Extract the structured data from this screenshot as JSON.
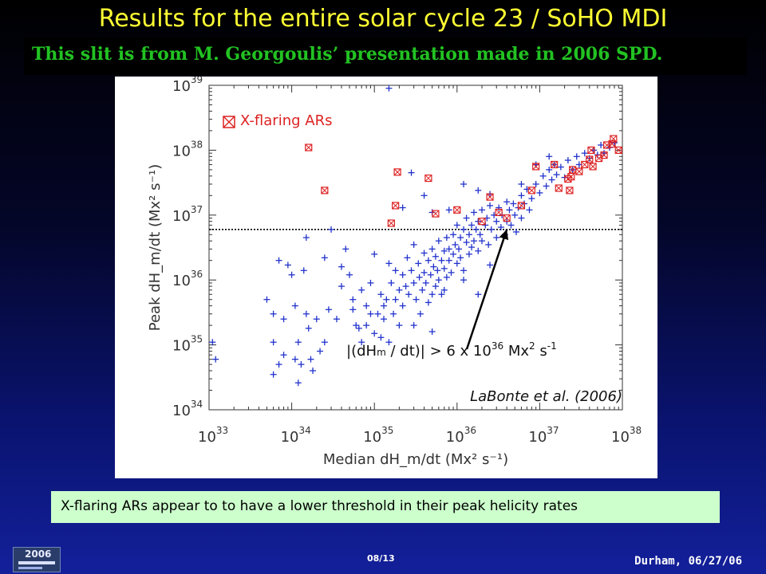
{
  "slide": {
    "title": "Results for the entire solar cycle 23 / SoHO MDI",
    "credit": "This slit is from M. Georgoulis’ presentation made in 2006 SPD.",
    "summary": "X-flaring ARs appear to to have a lower threshold in their peak helicity rates",
    "slide_number": "08/13",
    "location_date": "Durham, 06/27/06",
    "logo_year": "2006"
  },
  "colors": {
    "title": "#ffff33",
    "credit_text": "#22c222",
    "summary_bg": "#ccffcc",
    "cross_series": "#2233cc",
    "xflare_series": "#dd2222",
    "axes": "#333333"
  },
  "chart_data": {
    "type": "scatter",
    "xlabel": "Median dH_m/dt (Mx² s⁻¹)",
    "ylabel": "Peak dH_m/dt (Mx² s⁻¹)",
    "xscale": "log",
    "yscale": "log",
    "xlim": [
      1e+33,
      1e+38
    ],
    "ylim": [
      1e+34,
      1e+39
    ],
    "x_tick_labels": [
      {
        "base": "10",
        "exp": "33",
        "value": 1e+33
      },
      {
        "base": "10",
        "exp": "34",
        "value": 1e+34
      },
      {
        "base": "10",
        "exp": "35",
        "value": 1e+35
      },
      {
        "base": "10",
        "exp": "36",
        "value": 1e+36
      },
      {
        "base": "10",
        "exp": "37",
        "value": 1e+37
      },
      {
        "base": "10",
        "exp": "38",
        "value": 1e+38
      }
    ],
    "y_tick_labels": [
      {
        "base": "10",
        "exp": "34",
        "value": 1e+34
      },
      {
        "base": "10",
        "exp": "35",
        "value": 1e+35
      },
      {
        "base": "10",
        "exp": "36",
        "value": 1e+36
      },
      {
        "base": "10",
        "exp": "37",
        "value": 1e+37
      },
      {
        "base": "10",
        "exp": "38",
        "value": 1e+38
      },
      {
        "base": "10",
        "exp": "39",
        "value": 1e+39
      }
    ],
    "threshold": {
      "value": 6e+36,
      "style": "dotted",
      "label": {
        "lhs": "|(dH",
        "sub": "m",
        "mid": " / dt)| > 6 x 10",
        "exp1": "36",
        "unit": " Mx",
        "exp2": "2",
        "tail": " s",
        "exp3": "-1"
      }
    },
    "annotation_arrow": {
      "from": [
        6e+35,
        5e+35
      ],
      "to": [
        4e+36,
        6e+36
      ]
    },
    "citation": "LaBonte et al. (2006)",
    "legend": {
      "position": "top-left"
    },
    "series": [
      {
        "name": "",
        "marker": "plus",
        "points": [
          [
            1.1e+33,
            1.1e+35
          ],
          [
            1.2e+33,
            6e+34
          ],
          [
            5e+33,
            5e+35
          ],
          [
            6e+33,
            3e+35
          ],
          [
            6e+33,
            1.1e+35
          ],
          [
            6e+33,
            3.5e+34
          ],
          [
            7e+33,
            2e+36
          ],
          [
            7e+33,
            5e+34
          ],
          [
            8e+33,
            7e+34
          ],
          [
            8e+33,
            2.5e+35
          ],
          [
            9e+33,
            1.7e+36
          ],
          [
            1e+34,
            1.2e+36
          ],
          [
            1.1e+34,
            4e+35
          ],
          [
            1.1e+34,
            6e+34
          ],
          [
            1.2e+34,
            1.1e+35
          ],
          [
            1.2e+34,
            2.6e+34
          ],
          [
            1.3e+34,
            5e+34
          ],
          [
            1.4e+34,
            1.4e+36
          ],
          [
            1.5e+34,
            4.5e+36
          ],
          [
            1.5e+34,
            3e+35
          ],
          [
            1.6e+34,
            1.8e+35
          ],
          [
            1.7e+34,
            6e+34
          ],
          [
            1.8e+34,
            4e+34
          ],
          [
            2e+34,
            2.5e+35
          ],
          [
            2.2e+34,
            8e+34
          ],
          [
            2.5e+34,
            1.1e+35
          ],
          [
            2.5e+34,
            2.2e+36
          ],
          [
            2.8e+34,
            3.5e+35
          ],
          [
            3e+34,
            6e+36
          ],
          [
            3.5e+34,
            2.5e+35
          ],
          [
            4e+34,
            1.6e+36
          ],
          [
            4e+34,
            8e+35
          ],
          [
            4.5e+34,
            3e+36
          ],
          [
            5e+34,
            1.2e+36
          ],
          [
            5.5e+34,
            3.5e+35
          ],
          [
            5.5e+34,
            5e+35
          ],
          [
            6e+34,
            2e+35
          ],
          [
            6.5e+34,
            1.8e+35
          ],
          [
            7e+34,
            7e+35
          ],
          [
            7e+34,
            1.1e+35
          ],
          [
            8e+34,
            4e+35
          ],
          [
            8e+34,
            2e+35
          ],
          [
            9e+34,
            9e+35
          ],
          [
            9e+34,
            3e+35
          ],
          [
            1e+35,
            2.5e+36
          ],
          [
            1e+35,
            1.5e+35
          ],
          [
            1.1e+35,
            3e+35
          ],
          [
            1.2e+35,
            6e+35
          ],
          [
            1.2e+35,
            1.3e+35
          ],
          [
            1.3e+35,
            4e+35
          ],
          [
            1.3e+35,
            2.5e+35
          ],
          [
            1.4e+35,
            5e+35
          ],
          [
            1.5e+35,
            1.8e+36
          ],
          [
            1.5e+35,
            1.1e+35
          ],
          [
            1.6e+35,
            9e+35
          ],
          [
            1.7e+35,
            3e+35
          ],
          [
            1.8e+35,
            1.4e+36
          ],
          [
            1.8e+35,
            5e+35
          ],
          [
            2e+35,
            7e+35
          ],
          [
            2e+35,
            2e+35
          ],
          [
            2.2e+35,
            1.2e+36
          ],
          [
            2.2e+35,
            4e+35
          ],
          [
            2.4e+35,
            8e+35
          ],
          [
            2.5e+35,
            2.2e+36
          ],
          [
            2.6e+35,
            6e+35
          ],
          [
            2.8e+35,
            1.4e+36
          ],
          [
            3e+35,
            3.5e+36
          ],
          [
            3e+35,
            9e+35
          ],
          [
            3.2e+35,
            5e+35
          ],
          [
            3.4e+35,
            1.8e+36
          ],
          [
            3.5e+35,
            1.1e+36
          ],
          [
            3.6e+35,
            3e+35
          ],
          [
            3.8e+35,
            7e+35
          ],
          [
            4e+35,
            2.6e+36
          ],
          [
            4e+35,
            1.3e+36
          ],
          [
            4.2e+35,
            9e+35
          ],
          [
            4.5e+35,
            2e+36
          ],
          [
            4.5e+35,
            4.5e+35
          ],
          [
            4.8e+35,
            1.2e+36
          ],
          [
            5e+35,
            3e+36
          ],
          [
            5e+35,
            6e+35
          ],
          [
            5.2e+35,
            1.6e+36
          ],
          [
            5.5e+35,
            8e+35
          ],
          [
            5.5e+35,
            2.3e+36
          ],
          [
            5.8e+35,
            1.4e+36
          ],
          [
            6e+35,
            4e+36
          ],
          [
            6e+35,
            1e+36
          ],
          [
            6.5e+35,
            2e+36
          ],
          [
            6.5e+35,
            6e+35
          ],
          [
            7e+35,
            2.8e+36
          ],
          [
            7e+35,
            1.5e+36
          ],
          [
            7.5e+35,
            4.5e+36
          ],
          [
            7.5e+35,
            1.1e+36
          ],
          [
            8e+35,
            3e+36
          ],
          [
            8e+35,
            2e+36
          ],
          [
            8.5e+35,
            1.3e+36
          ],
          [
            9e+35,
            5e+36
          ],
          [
            9e+35,
            2.5e+36
          ],
          [
            9.5e+35,
            3.5e+36
          ],
          [
            1e+36,
            1.8e+36
          ],
          [
            1e+36,
            7e+36
          ],
          [
            1.05e+36,
            3e+36
          ],
          [
            1.1e+36,
            4.5e+36
          ],
          [
            1.1e+36,
            2.2e+36
          ],
          [
            1.2e+36,
            6e+36
          ],
          [
            1.2e+36,
            1.4e+36
          ],
          [
            1.3e+36,
            3.8e+36
          ],
          [
            1.3e+36,
            9e+36
          ],
          [
            1.4e+36,
            5e+36
          ],
          [
            1.4e+36,
            2.5e+36
          ],
          [
            1.5e+36,
            7e+36
          ],
          [
            1.5e+36,
            3.2e+36
          ],
          [
            1.6e+36,
            1.1e+37
          ],
          [
            1.6e+36,
            4e+36
          ],
          [
            1.7e+36,
            6e+36
          ],
          [
            1.8e+36,
            8e+36
          ],
          [
            1.8e+36,
            2.8e+36
          ],
          [
            1.9e+36,
            5e+36
          ],
          [
            2e+36,
            1.2e+37
          ],
          [
            2e+36,
            4e+36
          ],
          [
            2.2e+36,
            7e+36
          ],
          [
            2.3e+36,
            9e+36
          ],
          [
            2.4e+36,
            3.5e+36
          ],
          [
            2.5e+36,
            1.4e+37
          ],
          [
            2.6e+36,
            6e+36
          ],
          [
            2.8e+36,
            1e+37
          ],
          [
            3e+36,
            8e+36
          ],
          [
            3e+36,
            4.5e+36
          ],
          [
            3.2e+36,
            1.3e+37
          ],
          [
            3.4e+36,
            6.5e+36
          ],
          [
            3.5e+36,
            1e+37
          ],
          [
            3.8e+36,
            5e+36
          ],
          [
            4e+36,
            1.6e+37
          ],
          [
            4e+36,
            8e+36
          ],
          [
            4.3e+36,
            1.2e+37
          ],
          [
            4.5e+36,
            7e+36
          ],
          [
            4.8e+36,
            1.5e+37
          ],
          [
            5e+36,
            1e+37
          ],
          [
            5.2e+36,
            5.5e+36
          ],
          [
            5.5e+36,
            1.3e+37
          ],
          [
            6e+36,
            2e+37
          ],
          [
            6e+36,
            9e+36
          ],
          [
            6.5e+36,
            1.5e+37
          ],
          [
            7e+36,
            2.5e+37
          ],
          [
            7.5e+36,
            1.2e+37
          ],
          [
            8e+36,
            1.8e+37
          ],
          [
            9e+36,
            3e+37
          ],
          [
            1e+37,
            2.2e+37
          ],
          [
            1.1e+37,
            4e+37
          ],
          [
            1.2e+37,
            2.8e+37
          ],
          [
            1.3e+37,
            5e+37
          ],
          [
            1.4e+37,
            3.5e+37
          ],
          [
            1.5e+37,
            6e+37
          ],
          [
            1.6e+37,
            4.2e+37
          ],
          [
            1.8e+37,
            5.5e+37
          ],
          [
            2e+37,
            3.8e+37
          ],
          [
            2.2e+37,
            7e+37
          ],
          [
            2.5e+37,
            5e+37
          ],
          [
            2.8e+37,
            8e+37
          ],
          [
            3e+37,
            6e+37
          ],
          [
            3.5e+37,
            9e+37
          ],
          [
            4e+37,
            7.5e+37
          ],
          [
            4.5e+37,
            1e+38
          ],
          [
            5e+37,
            8.5e+37
          ],
          [
            5.5e+37,
            1.2e+38
          ],
          [
            6e+37,
            9e+37
          ],
          [
            7e+37,
            1.1e+38
          ],
          [
            8e+37,
            1.3e+38
          ],
          [
            1.5e+35,
            9e+38
          ],
          [
            2.8e+35,
            4.5e+37
          ],
          [
            4e+35,
            2e+37
          ],
          [
            5e+35,
            1.1e+37
          ],
          [
            8e+35,
            1.2e+37
          ],
          [
            2.2e+35,
            1.3e+37
          ],
          [
            1.2e+36,
            3e+37
          ],
          [
            1.8e+36,
            2.4e+37
          ],
          [
            2.5e+36,
            2.1e+37
          ],
          [
            6e+36,
            3e+37
          ],
          [
            9e+36,
            6e+37
          ],
          [
            1.3e+37,
            8e+37
          ],
          [
            2.5e+36,
            1.7e+36
          ],
          [
            5e+35,
            1.6e+35
          ],
          [
            3e+35,
            2e+35
          ],
          [
            1.8e+36,
            6e+35
          ],
          [
            7e+35,
            7e+35
          ],
          [
            1.2e+36,
            1e+36
          ]
        ]
      },
      {
        "name": "X-flaring ARs",
        "marker": "boxed-x",
        "points": [
          [
            1.6e+34,
            1.1e+38
          ],
          [
            1.9e+35,
            4.6e+37
          ],
          [
            4.5e+35,
            3.7e+37
          ],
          [
            2.5e+34,
            2.4e+37
          ],
          [
            1.8e+35,
            1.4e+37
          ],
          [
            1.6e+35,
            7.5e+36
          ],
          [
            2e+36,
            8e+36
          ],
          [
            2.5e+36,
            1.9e+37
          ],
          [
            3.2e+36,
            1.1e+37
          ],
          [
            4e+36,
            9e+36
          ],
          [
            6e+36,
            1.4e+37
          ],
          [
            8e+36,
            2.4e+37
          ],
          [
            9e+36,
            5.6e+37
          ],
          [
            1.5e+37,
            6e+37
          ],
          [
            1.7e+37,
            2.6e+37
          ],
          [
            2.2e+37,
            3.6e+37
          ],
          [
            2.3e+37,
            2.4e+37
          ],
          [
            2.4e+37,
            3.9e+37
          ],
          [
            2.5e+37,
            5e+37
          ],
          [
            3e+37,
            4.7e+37
          ],
          [
            3.5e+37,
            6e+37
          ],
          [
            4e+37,
            7.2e+37
          ],
          [
            4.4e+37,
            5.6e+37
          ],
          [
            4.2e+37,
            1e+38
          ],
          [
            5.2e+37,
            7.5e+37
          ],
          [
            6e+37,
            8.4e+37
          ],
          [
            6.5e+37,
            1.2e+38
          ],
          [
            7.5e+37,
            1.25e+38
          ],
          [
            7.8e+37,
            1.5e+38
          ],
          [
            9e+37,
            1e+38
          ],
          [
            1e+36,
            1.2e+37
          ],
          [
            5.5e+35,
            1.05e+37
          ]
        ]
      }
    ]
  }
}
